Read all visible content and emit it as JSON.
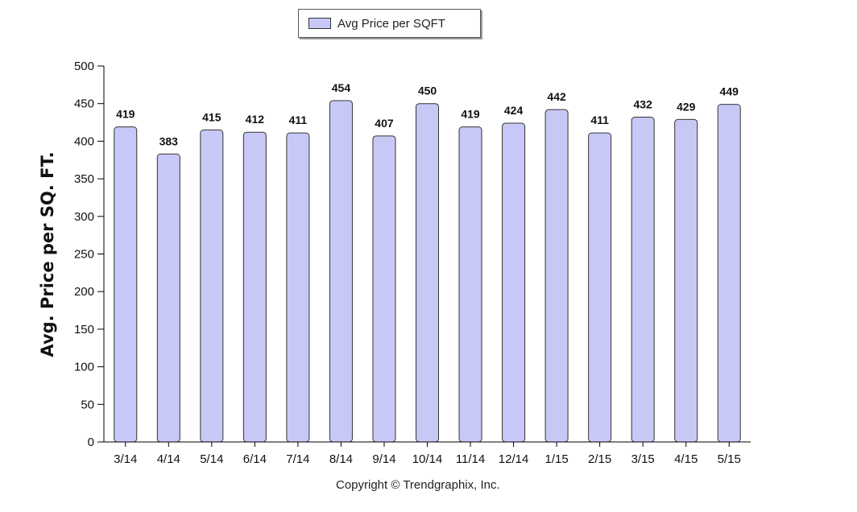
{
  "chart_data": {
    "type": "bar",
    "categories": [
      "3/14",
      "4/14",
      "5/14",
      "6/14",
      "7/14",
      "8/14",
      "9/14",
      "10/14",
      "11/14",
      "12/14",
      "1/15",
      "2/15",
      "3/15",
      "4/15",
      "5/15"
    ],
    "series": [
      {
        "name": "Avg Price per SQFT",
        "values": [
          419,
          383,
          415,
          412,
          411,
          454,
          407,
          450,
          419,
          424,
          442,
          411,
          432,
          429,
          449
        ]
      }
    ],
    "ylabel": "Avg. Price per SQ. FT.",
    "xlabel": "",
    "ylim": [
      0,
      500
    ],
    "yticks": [
      0,
      50,
      100,
      150,
      200,
      250,
      300,
      350,
      400,
      450,
      500
    ],
    "data_labels": true,
    "legend": "top-center",
    "grid": false,
    "bar_color": "#c8c8f6",
    "bar_edge_color": "#333333"
  },
  "footer": {
    "copyright": "Copyright © Trendgraphix, Inc."
  }
}
